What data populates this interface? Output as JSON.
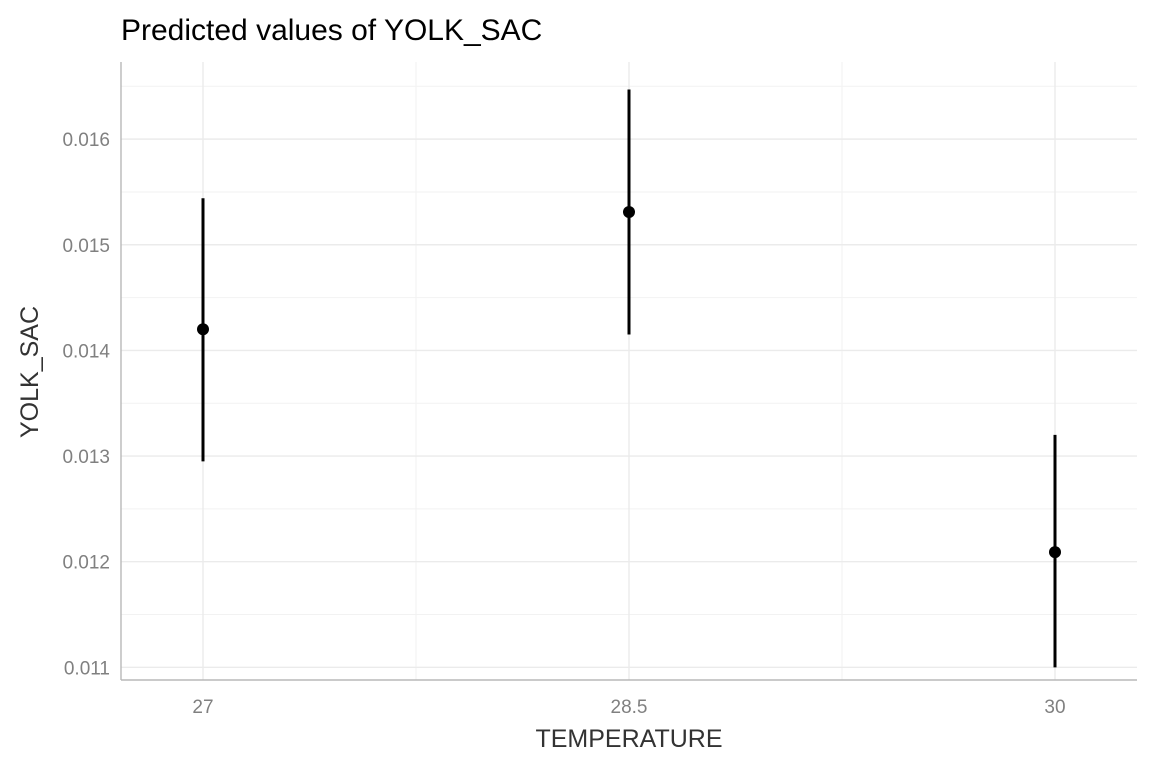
{
  "chart_data": {
    "type": "scatter",
    "title": "Predicted values of YOLK_SAC",
    "xlabel": "TEMPERATURE",
    "ylabel": "YOLK_SAC",
    "categories": [
      "27",
      "28.5",
      "30"
    ],
    "points": [
      {
        "x": "27",
        "y": 0.0142,
        "ci_low": 0.01295,
        "ci_high": 0.01544
      },
      {
        "x": "28.5",
        "y": 0.01531,
        "ci_low": 0.01415,
        "ci_high": 0.01647
      },
      {
        "x": "30",
        "y": 0.01209,
        "ci_low": 0.011,
        "ci_high": 0.0132
      }
    ],
    "y_ticks": [
      "0.011",
      "0.012",
      "0.013",
      "0.014",
      "0.015",
      "0.016"
    ],
    "ylim": [
      0.01088,
      0.01673
    ],
    "grid": true,
    "legend": "none",
    "colors": {
      "point": "#000000",
      "grid": "#ebebeb",
      "axis_text": "#808080"
    }
  }
}
